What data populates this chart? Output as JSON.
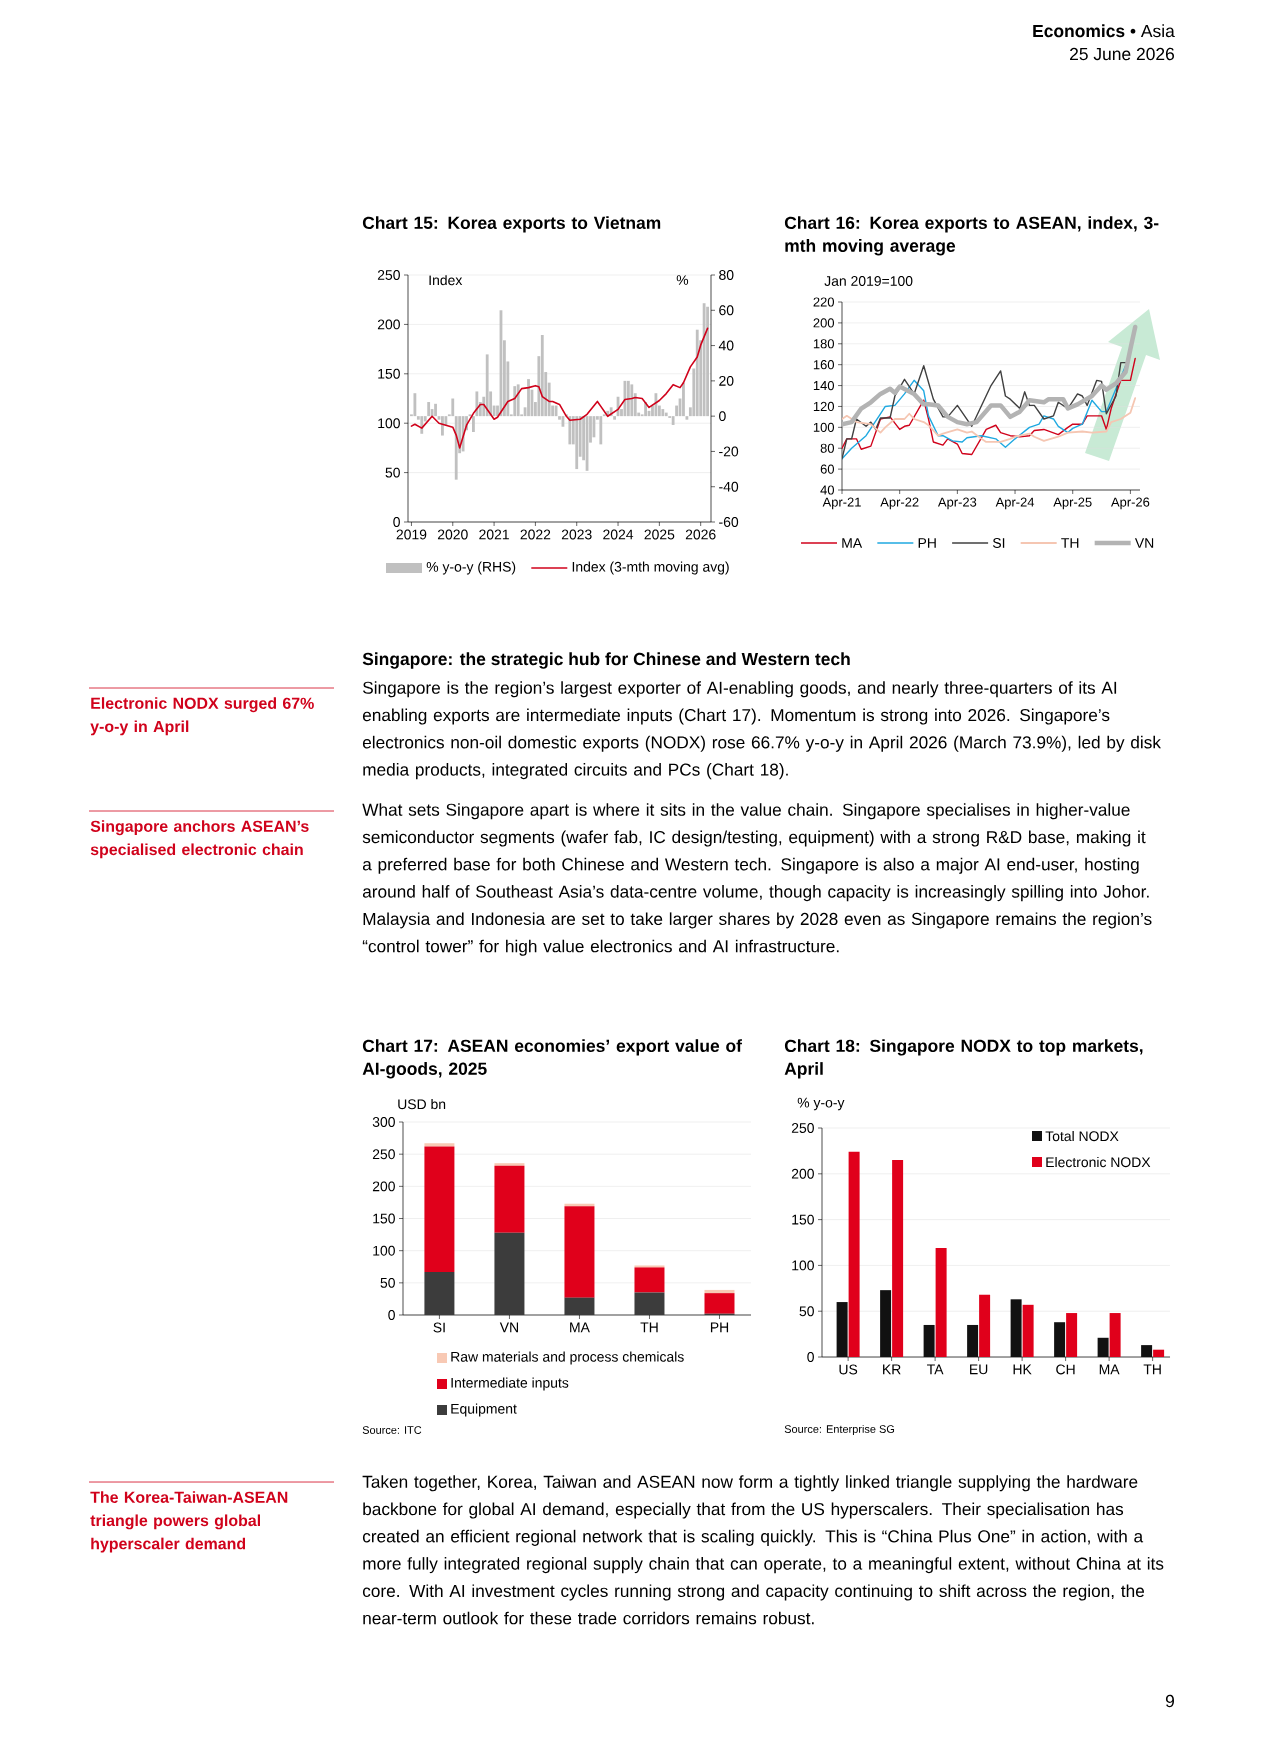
{
  "chart_data": [
    {
      "type": "bar",
      "title": "Chart 15: Korea exports to Vietnam",
      "ylabel": "Index",
      "y2label": "%",
      "x": [
        "2019-01",
        "2019-02",
        "2019-03",
        "2019-04",
        "2019-05",
        "2019-06",
        "2019-07",
        "2019-08",
        "2019-09",
        "2019-10",
        "2019-11",
        "2019-12",
        "2020-01",
        "2020-02",
        "2020-03",
        "2020-04",
        "2020-05",
        "2020-06",
        "2020-07",
        "2020-08",
        "2020-09",
        "2020-10",
        "2020-11",
        "2020-12",
        "2021-01",
        "2021-02",
        "2021-03",
        "2021-04",
        "2021-05",
        "2021-06",
        "2021-07",
        "2021-08",
        "2021-09",
        "2021-10",
        "2021-11",
        "2021-12",
        "2022-01",
        "2022-02",
        "2022-03",
        "2022-04",
        "2022-05",
        "2022-06",
        "2022-07",
        "2022-08",
        "2022-09",
        "2022-10",
        "2022-11",
        "2022-12",
        "2023-01",
        "2023-02",
        "2023-03",
        "2023-04",
        "2023-05",
        "2023-06",
        "2023-07",
        "2023-08",
        "2023-09",
        "2023-10",
        "2023-11",
        "2023-12",
        "2024-01",
        "2024-02",
        "2024-03",
        "2024-04",
        "2024-05",
        "2024-06",
        "2024-07",
        "2024-08",
        "2024-09",
        "2024-10",
        "2024-11",
        "2024-12",
        "2025-01",
        "2025-02",
        "2025-03",
        "2025-04",
        "2025-05",
        "2025-06",
        "2025-07",
        "2025-08",
        "2025-09",
        "2025-10",
        "2025-11",
        "2025-12",
        "2026-01",
        "2026-02",
        "2026-03"
      ],
      "xlim": [
        "2018-12",
        "2026-04"
      ],
      "xticks": [
        {
          "value": "2019-01",
          "label": "2019"
        },
        {
          "value": "2020-01",
          "label": "2020"
        },
        {
          "value": "2021-01",
          "label": "2021"
        },
        {
          "value": "2022-01",
          "label": "2022"
        },
        {
          "value": "2023-01",
          "label": "2023"
        },
        {
          "value": "2024-01",
          "label": "2024"
        },
        {
          "value": "2025-01",
          "label": "2025"
        },
        {
          "value": "2026-01",
          "label": "2026"
        }
      ],
      "ylim": [
        0,
        250
      ],
      "yticks": [
        0,
        50,
        100,
        150,
        200,
        250
      ],
      "y2lim": [
        -60,
        80
      ],
      "y2ticks": [
        -60,
        -40,
        -20,
        0,
        20,
        40,
        60,
        80
      ],
      "grid": "y",
      "legend": "bottom",
      "series": [
        {
          "name": "% y-o-y (RHS)",
          "color": "#c0c0c0",
          "axis": "y2",
          "values": [
            1,
            13,
            -2,
            -10,
            -3,
            8,
            4,
            7,
            -2,
            -11,
            -5,
            1,
            10,
            -36,
            -21,
            -20,
            -8,
            1,
            -9,
            14,
            8,
            11,
            35,
            14,
            6,
            6,
            60,
            43,
            31,
            1,
            17,
            18,
            1,
            5,
            21,
            15,
            8,
            34,
            46,
            25,
            19,
            6,
            6,
            -2,
            -6,
            1,
            -16,
            -16,
            -30,
            -23,
            -25,
            -31,
            -15,
            -12,
            -2,
            -16,
            1,
            3,
            5,
            -2,
            11,
            4,
            20,
            20,
            18,
            13,
            2,
            1,
            8,
            3,
            6,
            13,
            6,
            4,
            2,
            -1,
            -5,
            6,
            10,
            19,
            -2,
            5,
            27,
            49,
            43,
            64,
            62
          ]
        },
        {
          "name": "Index (3-mth moving avg)",
          "type": "line",
          "color": "#d0021b",
          "x": [
            "2019-01",
            "2019-02",
            "2019-04",
            "2019-07",
            "2019-09",
            "2019-11",
            "2020-01",
            "2020-02",
            "2020-03",
            "2020-05",
            "2020-07",
            "2020-09",
            "2020-10",
            "2021-01",
            "2021-02",
            "2021-05",
            "2021-07",
            "2021-09",
            "2021-11",
            "2022-01",
            "2022-02",
            "2022-03",
            "2022-05",
            "2022-06",
            "2022-08",
            "2022-10",
            "2022-11",
            "2023-02",
            "2023-04",
            "2023-07",
            "2023-08",
            "2023-10",
            "2024-01",
            "2024-03",
            "2024-05",
            "2024-06",
            "2024-08",
            "2024-10",
            "2025-01",
            "2025-03",
            "2025-05",
            "2025-07",
            "2025-08",
            "2025-10",
            "2025-12",
            "2026-01",
            "2026-03"
          ],
          "values": [
            97,
            99,
            95,
            107,
            100,
            98,
            96,
            88,
            75,
            98,
            110,
            119,
            119,
            104,
            106,
            122,
            125,
            135,
            136,
            138,
            137,
            127,
            122,
            122,
            119,
            107,
            103,
            104,
            109,
            122,
            117,
            107,
            114,
            124,
            125,
            126,
            125,
            116,
            123,
            130,
            139,
            136,
            141,
            157,
            167,
            179,
            196
          ]
        }
      ]
    },
    {
      "type": "line",
      "title": "Chart 16: Korea exports to ASEAN, index, 3-mth moving average",
      "ylabel": "Jan 2019=100",
      "xlim": [
        "2021-04",
        "2026-06"
      ],
      "xticks": [
        {
          "value": "2021-04",
          "label": "Apr-21"
        },
        {
          "value": "2022-04",
          "label": "Apr-22"
        },
        {
          "value": "2023-04",
          "label": "Apr-23"
        },
        {
          "value": "2024-04",
          "label": "Apr-24"
        },
        {
          "value": "2025-04",
          "label": "Apr-25"
        },
        {
          "value": "2026-04",
          "label": "Apr-26"
        }
      ],
      "ylim": [
        40,
        220
      ],
      "yticks": [
        40,
        60,
        80,
        100,
        120,
        140,
        160,
        180,
        200,
        220
      ],
      "grid": "y",
      "legend": "bottom",
      "series": [
        {
          "name": "MA",
          "color": "#d0021b",
          "x": [
            "2021-04",
            "2021-05",
            "2021-07",
            "2021-08",
            "2021-10",
            "2021-12",
            "2022-02",
            "2022-04",
            "2022-05",
            "2022-06",
            "2022-09",
            "2022-10",
            "2022-11",
            "2023-01",
            "2023-02",
            "2023-04",
            "2023-05",
            "2023-07",
            "2023-09",
            "2023-10",
            "2023-12",
            "2024-01",
            "2024-03",
            "2024-05",
            "2024-07",
            "2024-08",
            "2024-10",
            "2025-01",
            "2025-03",
            "2025-04",
            "2025-06",
            "2025-07",
            "2025-10",
            "2025-11",
            "2025-12",
            "2026-02",
            "2026-04",
            "2026-05"
          ],
          "values": [
            80,
            89,
            89,
            79,
            82,
            108,
            110,
            98,
            101,
            102,
            126,
            108,
            86,
            83,
            89,
            84,
            75,
            74,
            90,
            98,
            102,
            95,
            92,
            91,
            92,
            97,
            98,
            93,
            100,
            103,
            103,
            111,
            111,
            98,
            118,
            145,
            145,
            166
          ]
        },
        {
          "name": "PH",
          "color": "#1fa9e1",
          "x": [
            "2021-04",
            "2021-06",
            "2021-09",
            "2021-12",
            "2022-01",
            "2022-03",
            "2022-05",
            "2022-07",
            "2022-09",
            "2022-10",
            "2022-12",
            "2023-01",
            "2023-03",
            "2023-05",
            "2023-06",
            "2023-09",
            "2023-12",
            "2024-02",
            "2024-04",
            "2024-07",
            "2024-09",
            "2024-10",
            "2024-12",
            "2025-01",
            "2025-03",
            "2025-04",
            "2025-06",
            "2025-08",
            "2025-10",
            "2025-11",
            "2026-01",
            "2026-03"
          ],
          "values": [
            70,
            80,
            92,
            113,
            120,
            121,
            132,
            145,
            135,
            111,
            92,
            92,
            87,
            86,
            90,
            92,
            89,
            81,
            89,
            100,
            103,
            111,
            108,
            101,
            95,
            99,
            103,
            126,
            115,
            115,
            137,
            159
          ]
        },
        {
          "name": "SI",
          "color": "#404040",
          "x": [
            "2021-04",
            "2021-05",
            "2021-06",
            "2021-07",
            "2021-09",
            "2021-10",
            "2021-11",
            "2021-12",
            "2022-02",
            "2022-03",
            "2022-05",
            "2022-07",
            "2022-09",
            "2022-11",
            "2023-01",
            "2023-02",
            "2023-04",
            "2023-07",
            "2023-11",
            "2024-01",
            "2024-02",
            "2024-03",
            "2024-05",
            "2024-06",
            "2024-07",
            "2024-08",
            "2024-10",
            "2024-12",
            "2025-01",
            "2025-03",
            "2025-05",
            "2025-06",
            "2025-07",
            "2025-09",
            "2025-10",
            "2025-11",
            "2026-01",
            "2026-02",
            "2026-03"
          ],
          "values": [
            70,
            89,
            89,
            108,
            101,
            105,
            98,
            109,
            109,
            130,
            146,
            132,
            159,
            127,
            110,
            110,
            121,
            101,
            140,
            154,
            130,
            127,
            118,
            134,
            121,
            121,
            108,
            111,
            124,
            118,
            132,
            130,
            121,
            145,
            144,
            113,
            130,
            162,
            162
          ]
        },
        {
          "name": "TH",
          "color": "#f5c6b2",
          "x": [
            "2021-04",
            "2021-05",
            "2021-07",
            "2021-10",
            "2021-12",
            "2022-01",
            "2022-03",
            "2022-05",
            "2022-06",
            "2022-07",
            "2022-09",
            "2022-10",
            "2022-12",
            "2023-01",
            "2023-04",
            "2023-06",
            "2023-07",
            "2023-09",
            "2023-10",
            "2024-01",
            "2024-03",
            "2024-04",
            "2024-07",
            "2024-08",
            "2024-10",
            "2025-01",
            "2025-03",
            "2025-06",
            "2025-08",
            "2025-11",
            "2025-12",
            "2026-02",
            "2026-04",
            "2026-05"
          ],
          "values": [
            108,
            111,
            105,
            103,
            95,
            100,
            108,
            108,
            113,
            108,
            105,
            102,
            92,
            94,
            98,
            95,
            96,
            89,
            86,
            86,
            89,
            91,
            94,
            91,
            87,
            91,
            95,
            96,
            95,
            96,
            105,
            108,
            114,
            128
          ]
        },
        {
          "name": "VN",
          "color": "#b3b3b3",
          "x": [
            "2021-04",
            "2021-06",
            "2021-08",
            "2021-10",
            "2021-12",
            "2022-02",
            "2022-03",
            "2022-04",
            "2022-07",
            "2022-09",
            "2022-10",
            "2022-12",
            "2023-02",
            "2023-04",
            "2023-06",
            "2023-08",
            "2023-11",
            "2024-01",
            "2024-03",
            "2024-05",
            "2024-07",
            "2024-10",
            "2024-11",
            "2025-02",
            "2025-03",
            "2025-05",
            "2025-08",
            "2025-10",
            "2025-11",
            "2026-01",
            "2026-03",
            "2026-04",
            "2026-05"
          ],
          "values": [
            103,
            105,
            118,
            124,
            132,
            137,
            133,
            139,
            132,
            122,
            122,
            121,
            110,
            105,
            103,
            105,
            121,
            121,
            110,
            115,
            126,
            124,
            127,
            127,
            118,
            122,
            130,
            140,
            136,
            142,
            153,
            175,
            196
          ]
        }
      ]
    },
    {
      "type": "bar",
      "stacked": true,
      "title": "Chart 17: ASEAN economies’ export value of AI-goods, 2025",
      "ylabel": "USD bn",
      "categories": [
        "SI",
        "VN",
        "MA",
        "TH",
        "PH"
      ],
      "ylim": [
        0,
        300
      ],
      "yticks": [
        0,
        50,
        100,
        150,
        200,
        250,
        300
      ],
      "grid": "y",
      "legend": "bottom",
      "series": [
        {
          "name": "Equipment",
          "color": "#3c3c3c",
          "values": [
            67,
            128,
            27,
            35,
            2
          ]
        },
        {
          "name": "Intermediate inputs",
          "color": "#e0001b",
          "values": [
            195,
            104,
            142,
            39,
            32
          ]
        },
        {
          "name": "Raw materials and process chemicals",
          "color": "#f8c9b4",
          "values": [
            5,
            4,
            4,
            3,
            5
          ]
        }
      ],
      "annotations": [
        "Source: ITC"
      ]
    },
    {
      "type": "bar",
      "title": "Chart 18: Singapore NODX to top markets, April",
      "ylabel": "% y-o-y",
      "categories": [
        "US",
        "KR",
        "TA",
        "EU",
        "HK",
        "CH",
        "MA",
        "TH"
      ],
      "ylim": [
        0,
        250
      ],
      "yticks": [
        0,
        50,
        100,
        150,
        200,
        250
      ],
      "grid": "y",
      "legend": "top right",
      "series": [
        {
          "name": "Total NODX",
          "color": "#111111",
          "values": [
            60,
            73,
            35,
            35,
            63,
            38,
            21,
            13
          ]
        },
        {
          "name": "Electronic NODX",
          "color": "#e0001b",
          "values": [
            224,
            215,
            119,
            68,
            57,
            48,
            48,
            8
          ]
        }
      ],
      "annotations": [
        "Source: Enterprise SG"
      ]
    },
    {
      "type": "other",
      "annotations": [
        "**Economics** • Asia",
        "25 June 2026",
        "Singapore: the strategic hub for Chinese and Western tech",
        "Singapore is the region’s largest exporter of AI-enabling goods, and nearly three-quarters of its AI enabling exports are intermediate inputs (Chart 17). Momentum is strong into 2026. Singapore’s electronics non-oil domestic exports (NODX) rose 66.7% y-o-y in April 2026 (March 73.9%), led by disk media products, integrated circuits and PCs (Chart 18).",
        "What sets Singapore apart is where it sits in the value chain. Singapore specialises in higher-value semiconductor segments (wafer fab, IC design/testing, equipment) with a strong R&D base, making it a preferred base for both Chinese and Western tech. Singapore is also a major AI end-user, hosting around half of Southeast Asia’s data-centre volume, though capacity is increasingly spilling into Johor. Malaysia and Indonesia are set to take larger shares by 2028 even as Singapore remains the region’s “control tower” for high value electronics and AI infrastructure.",
        "Taken together, Korea, Taiwan and ASEAN now form a tightly linked triangle supplying the hardware backbone for global AI demand, especially that from the US hyperscalers. Their specialisation has created an efficient regional network that is scaling quickly. This is “China Plus One” in action, with a more fully integrated regional supply chain that can operate, to a meaningful extent, without China at its core. With AI investment cycles running strong and capacity continuing to shift across the region, the near-term outlook for these trade corridors remains robust.",
        "Electronic NODX surged 67% y-o-y in April",
        "Singapore anchors ASEAN’s specialised electronic chain",
        "The Korea-Taiwan-ASEAN triangle powers global hyperscaler demand",
        "9"
      ]
    }
  ]
}
